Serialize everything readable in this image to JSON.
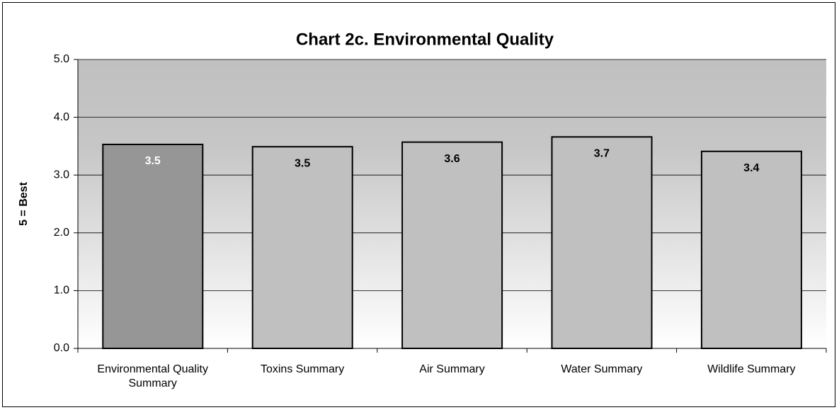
{
  "chart_data": {
    "type": "bar",
    "title": "Chart 2c. Environmental Quality",
    "y_label": "5 = Best",
    "categories": [
      "Environmental Quality Summary",
      "Toxins Summary",
      "Air Summary",
      "Water Summary",
      "Wildlife Summary"
    ],
    "values": [
      3.53,
      3.49,
      3.57,
      3.66,
      3.41
    ],
    "value_labels": [
      "3.5",
      "3.5",
      "3.6",
      "3.7",
      "3.4"
    ],
    "colors": [
      "#969696",
      "#c0c0c0",
      "#c0c0c0",
      "#c0c0c0",
      "#c0c0c0"
    ],
    "ylim": [
      0,
      5
    ],
    "yticks": [
      {
        "value": 0,
        "label": "0.0"
      },
      {
        "value": 1,
        "label": "1.0"
      },
      {
        "value": 2,
        "label": "2.0"
      },
      {
        "value": 3,
        "label": "3.0"
      },
      {
        "value": 4,
        "label": "4.0"
      },
      {
        "value": 5,
        "label": "5.0"
      }
    ],
    "grid": true
  }
}
